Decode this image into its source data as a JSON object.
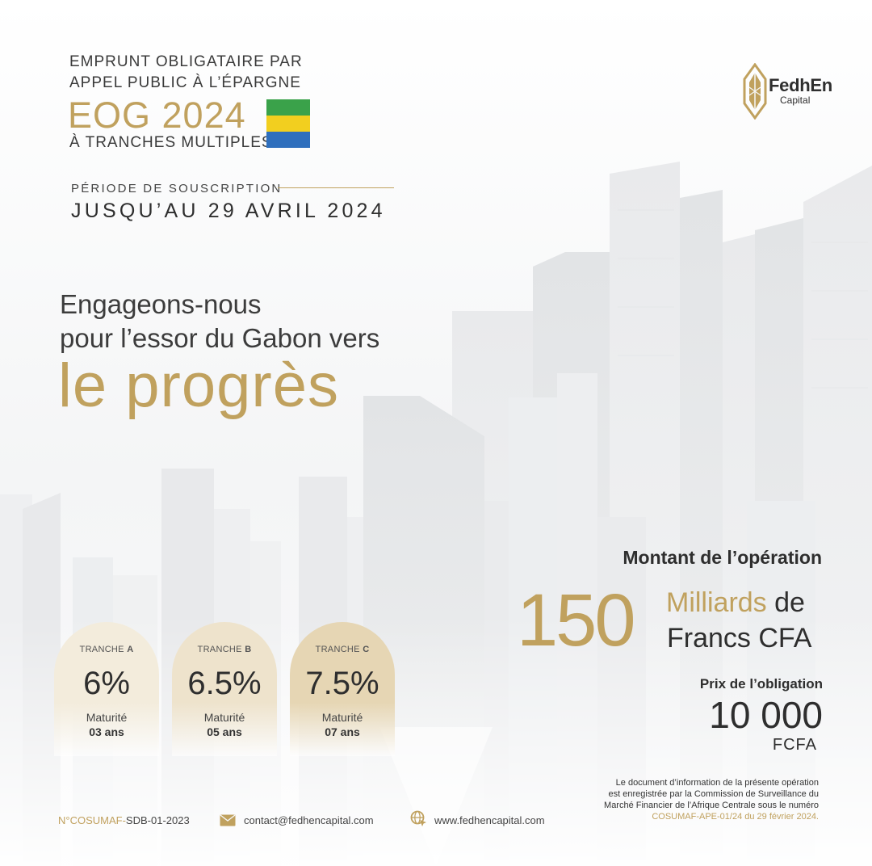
{
  "header": {
    "line1": "EMPRUNT OBLIGATAIRE PAR",
    "line2": "APPEL PUBLIC À L’ÉPARGNE",
    "big": "EOG 2024",
    "line3": "À TRANCHES MULTIPLES"
  },
  "flag_colors": [
    "#3aa24a",
    "#f2cf1f",
    "#2f6fbd"
  ],
  "subscription": {
    "label": "PÉRIODE DE SOUSCRIPTION",
    "date": "JUSQU’AU 29 AVRIL 2024"
  },
  "tagline": {
    "line1": "Engageons-nous",
    "line2": "pour l’essor du Gabon vers",
    "line3": "le progrès"
  },
  "logo": {
    "name": "FedhEn",
    "sub": "Capital",
    "icon": "fedhen-emblem-icon"
  },
  "tranches": [
    {
      "label": "TRANCHE",
      "letter": "A",
      "rate": "6%",
      "maturity_label": "Maturité",
      "duration": "03 ans"
    },
    {
      "label": "TRANCHE",
      "letter": "B",
      "rate": "6.5%",
      "maturity_label": "Maturité",
      "duration": "05 ans"
    },
    {
      "label": "TRANCHE",
      "letter": "C",
      "rate": "7.5%",
      "maturity_label": "Maturité",
      "duration": "07 ans"
    }
  ],
  "operation": {
    "title": "Montant de l’opération",
    "amount": "150",
    "unit_gold": "Milliards",
    "unit_de": "de",
    "unit_line2": "Francs CFA"
  },
  "price": {
    "label": "Prix de l’obligation",
    "value": "10 000",
    "unit": "FCFA"
  },
  "legal": {
    "line1": "Le document d’information de la présente opération",
    "line2": "est enregistrée par la Commission de Surveillance du",
    "line3": "Marché Financier de l’Afrique Centrale sous le numéro",
    "ref": "COSUMAF-APE-01/24 du 29 février 2024."
  },
  "footer": {
    "reg_prefix": "N°COSUMAF-",
    "reg_number": "SDB-01-2023",
    "email": "contact@fedhencapital.com",
    "website": "www.fedhencapital.com"
  },
  "colors": {
    "gold": "#c0a15e",
    "text_dark": "#2e2e2e",
    "card_a": "#f3ecdc",
    "card_b": "#eee3cc",
    "card_c": "#e6d6b4"
  }
}
